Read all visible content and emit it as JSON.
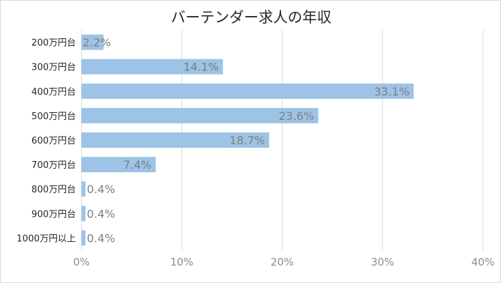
{
  "chart_data": {
    "type": "bar",
    "orientation": "horizontal",
    "title": "バーテンダー求人の年収",
    "categories": [
      "200万円台",
      "300万円台",
      "400万円台",
      "500万円台",
      "600万円台",
      "700万円台",
      "800万円台",
      "900万円台",
      "1000万円以上"
    ],
    "values": [
      2.2,
      14.1,
      33.1,
      23.6,
      18.7,
      7.4,
      0.4,
      0.4,
      0.4
    ],
    "data_labels": [
      "2.2%",
      "14.1%",
      "33.1%",
      "23.6%",
      "18.7%",
      "7.4%",
      "0.4%",
      "0.4%",
      "0.4%"
    ],
    "xlim": [
      0,
      40
    ],
    "x_ticks": [
      0,
      10,
      20,
      30,
      40
    ],
    "x_tick_labels": [
      "0%",
      "10%",
      "20%",
      "30%",
      "40%"
    ],
    "grid": "vertical",
    "legend": "none",
    "bar_color": "#9dc3e6",
    "grid_color": "#d9d9d9"
  }
}
